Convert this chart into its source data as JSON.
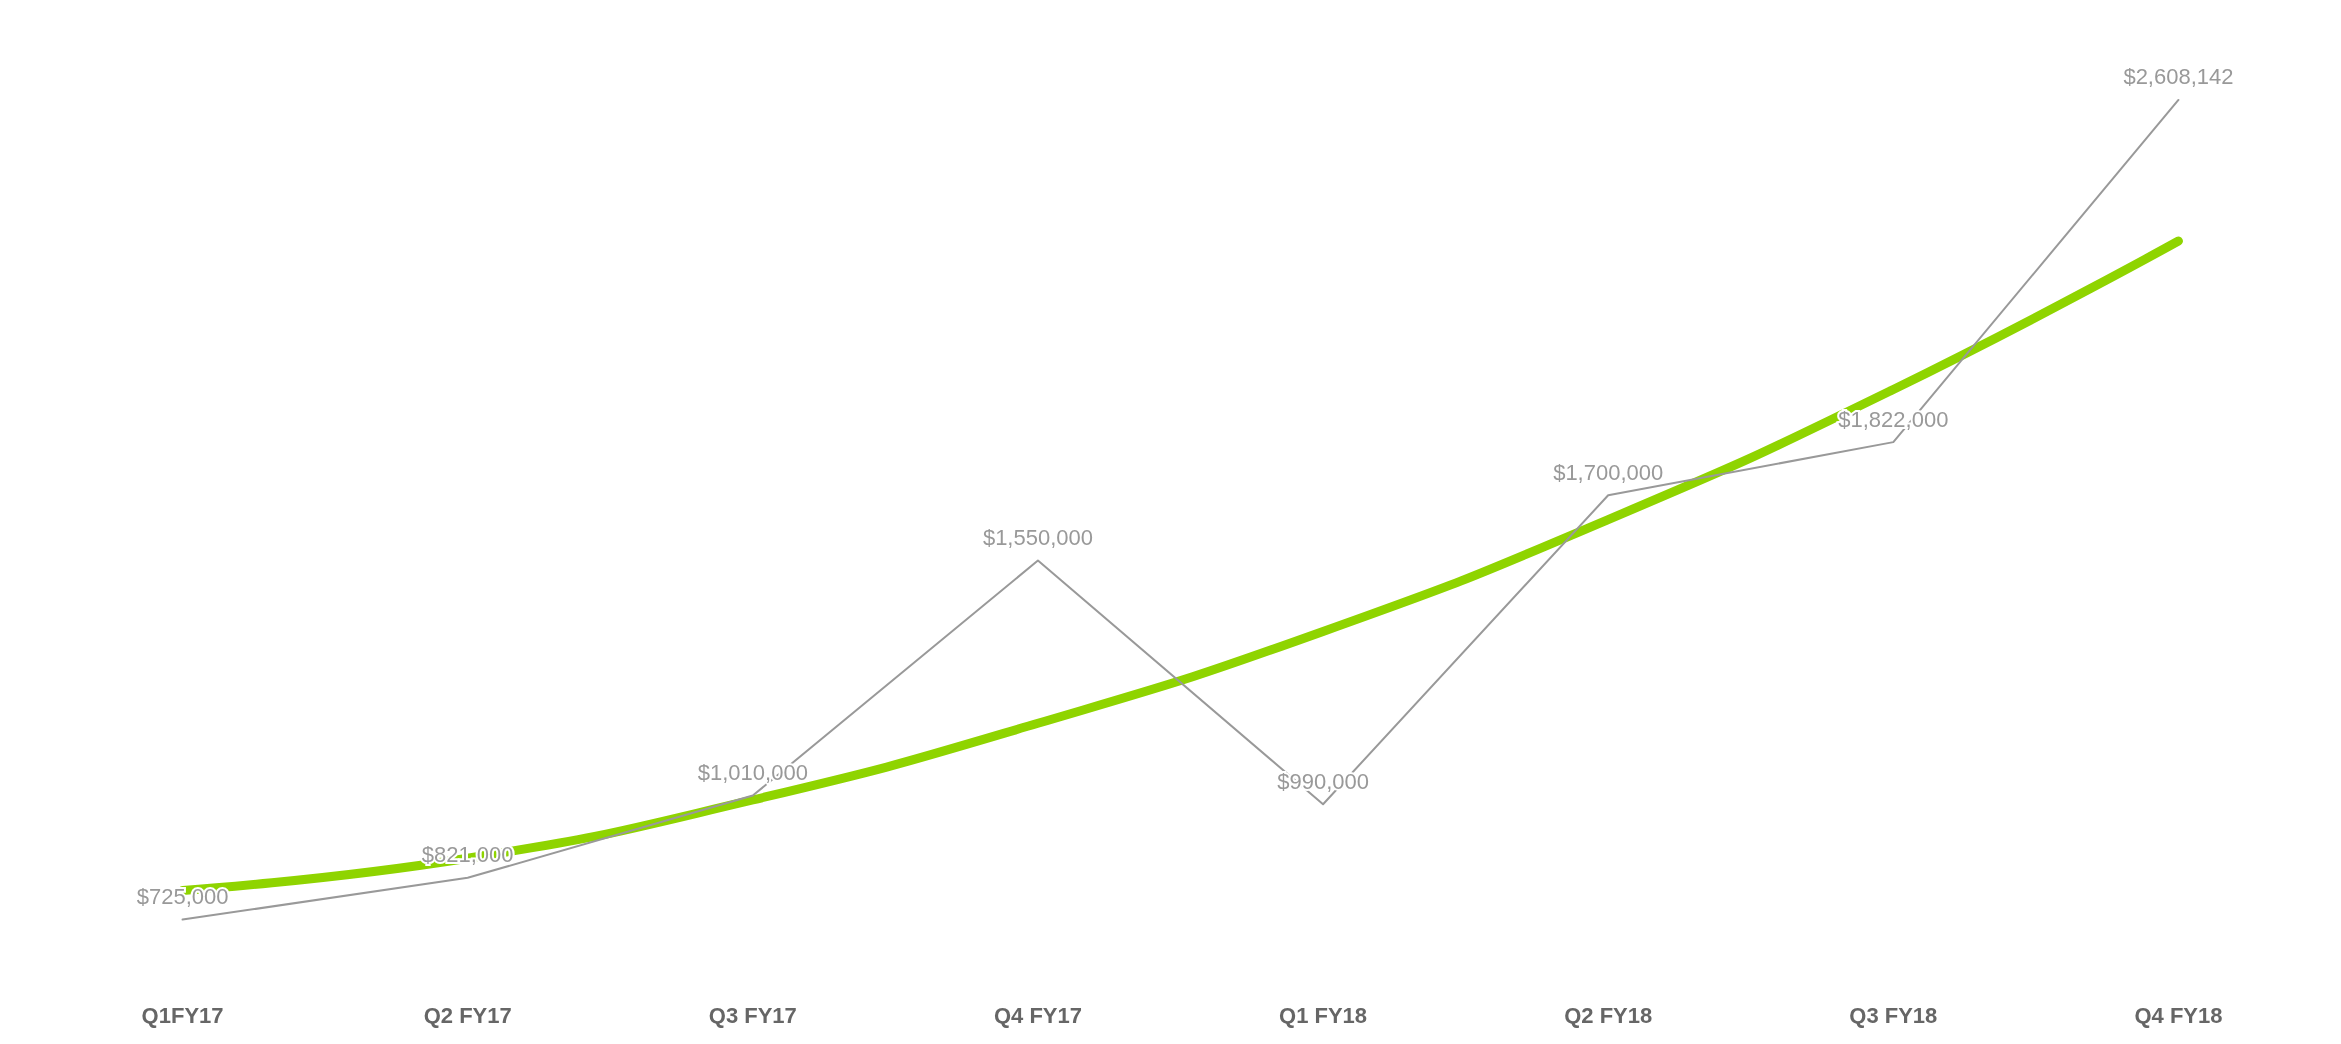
{
  "chart_data": {
    "type": "line",
    "categories": [
      "Q1FY17",
      "Q2 FY17",
      "Q3 FY17",
      "Q4 FY17",
      "Q1 FY18",
      "Q2 FY18",
      "Q3 FY18",
      "Q4 FY18"
    ],
    "series": [
      {
        "color": "#999999",
        "values": [
          725000,
          821000,
          1010000,
          1550000,
          990000,
          1700000,
          1822000,
          2608142
        ],
        "value_labels": [
          "$725,000",
          "$821,000",
          "$1,010,000",
          "$1,550,000",
          "$990,000",
          "$1,700,000",
          "$1,822,000",
          "$2,608,142"
        ]
      },
      {
        "color": "#8fd400",
        "values": [
          792000,
          866000,
          1000000,
          1176000,
          1387000,
          1644000,
          1943000,
          2284000
        ]
      }
    ],
    "grid": false,
    "marker": "none",
    "line_style": "solid"
  }
}
